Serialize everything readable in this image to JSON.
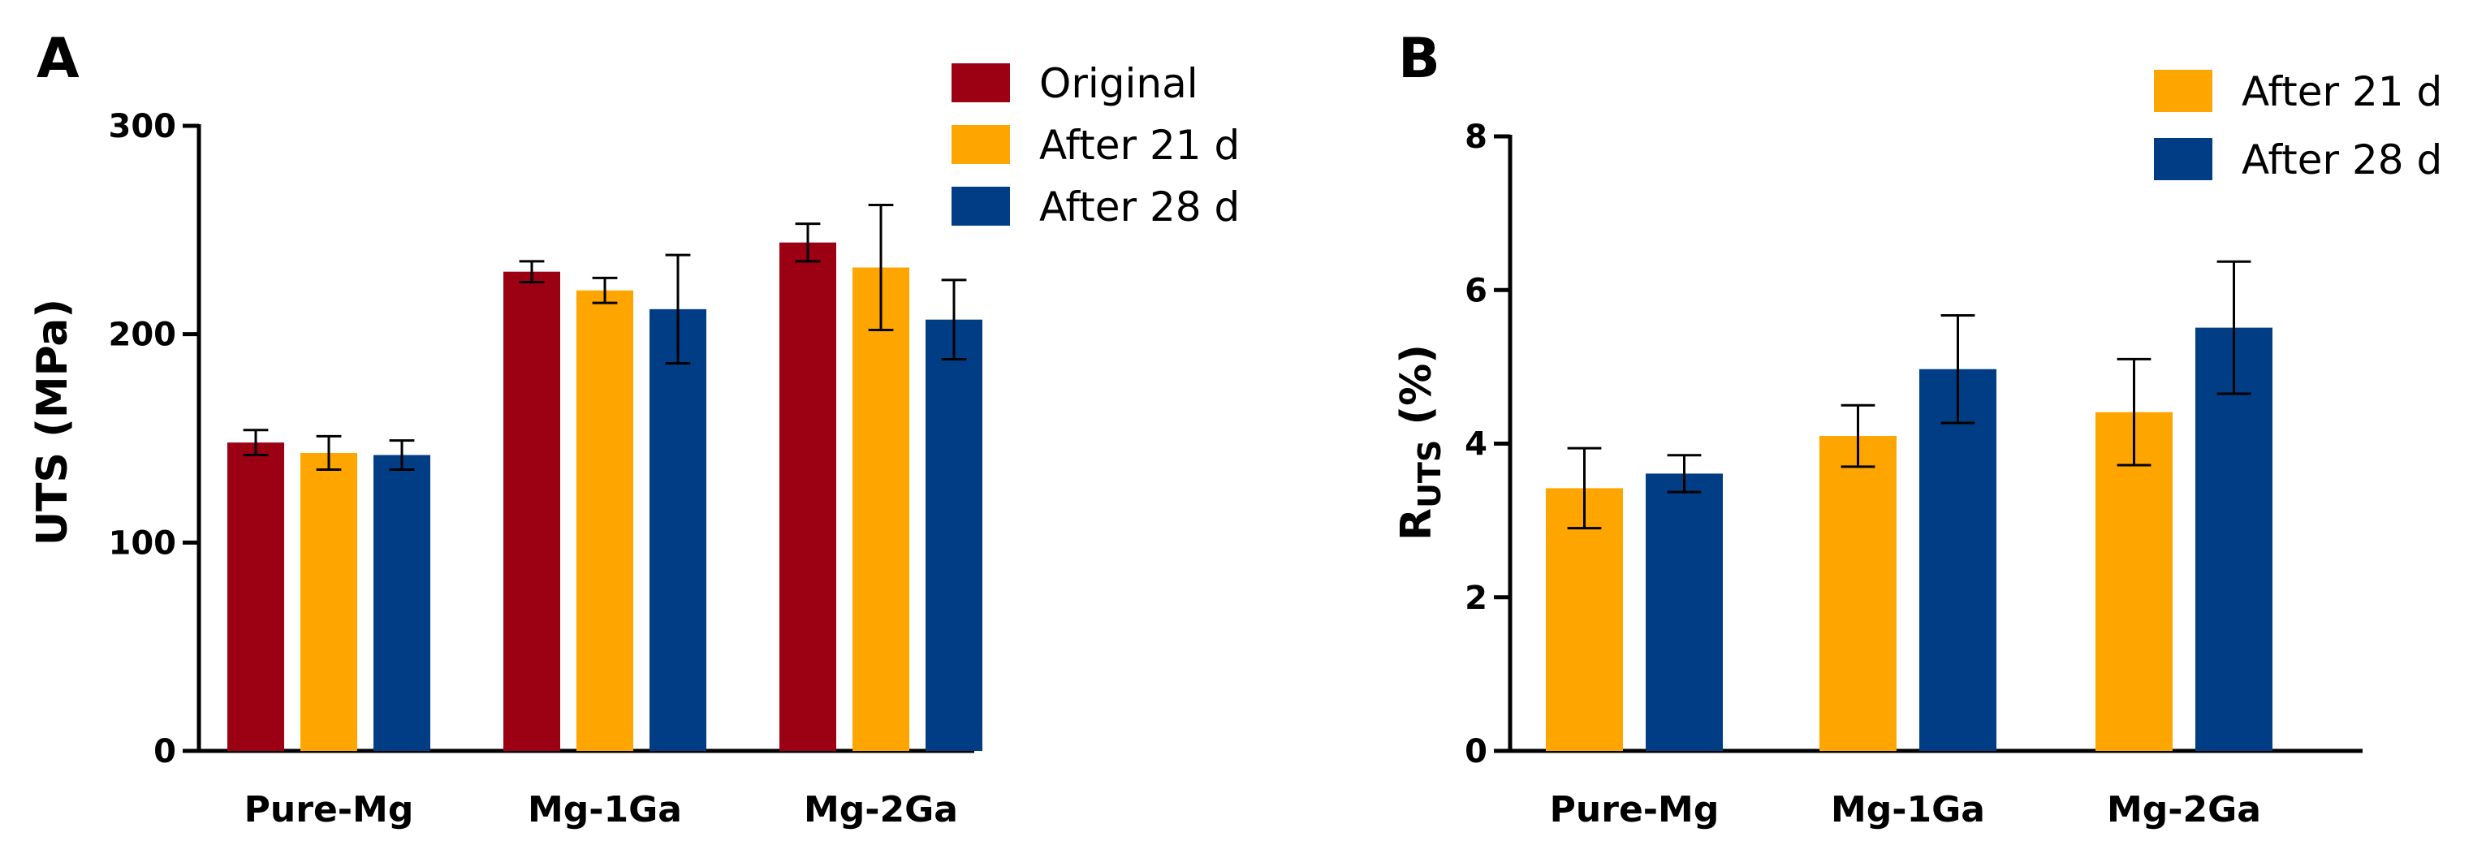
{
  "chart_data": [
    {
      "panel": "A",
      "type": "bar",
      "categories": [
        "Pure-Mg",
        "Mg-1Ga",
        "Mg-2Ga"
      ],
      "ylabel": "UTS (MPa)",
      "xlabel": "",
      "ylim": [
        0,
        300
      ],
      "yticks": [
        0,
        100,
        200,
        300
      ],
      "ytick_labels": [
        "0",
        "100",
        "200",
        "300"
      ],
      "legend_position": "top-right",
      "series": [
        {
          "name": "Original",
          "color": "#9B0013",
          "values": [
            148,
            230,
            244
          ],
          "errors": [
            6,
            5,
            9
          ]
        },
        {
          "name": "After 21 d",
          "color": "#FFA500",
          "values": [
            143,
            221,
            232
          ],
          "errors": [
            8,
            6,
            30
          ]
        },
        {
          "name": "After 28 d",
          "color": "#003D85",
          "values": [
            142,
            212,
            207
          ],
          "errors": [
            7,
            26,
            19
          ]
        }
      ]
    },
    {
      "panel": "B",
      "type": "bar",
      "categories": [
        "Pure-Mg",
        "Mg-1Ga",
        "Mg-2Ga"
      ],
      "ylabel_main": "R",
      "ylabel_sub": "UTS",
      "ylabel_unit": " (%)",
      "xlabel": "",
      "ylim": [
        0,
        8
      ],
      "yticks": [
        0,
        2,
        4,
        6,
        8
      ],
      "ytick_labels": [
        "0",
        "2",
        "4",
        "6",
        "8"
      ],
      "legend_position": "top-right",
      "series": [
        {
          "name": "After 21 d",
          "color": "#FFA500",
          "values": [
            3.42,
            4.1,
            4.41
          ],
          "errors": [
            0.52,
            0.4,
            0.69
          ]
        },
        {
          "name": "After 28 d",
          "color": "#003D85",
          "values": [
            3.61,
            4.97,
            5.51
          ],
          "errors": [
            0.24,
            0.7,
            0.86
          ]
        }
      ]
    }
  ]
}
